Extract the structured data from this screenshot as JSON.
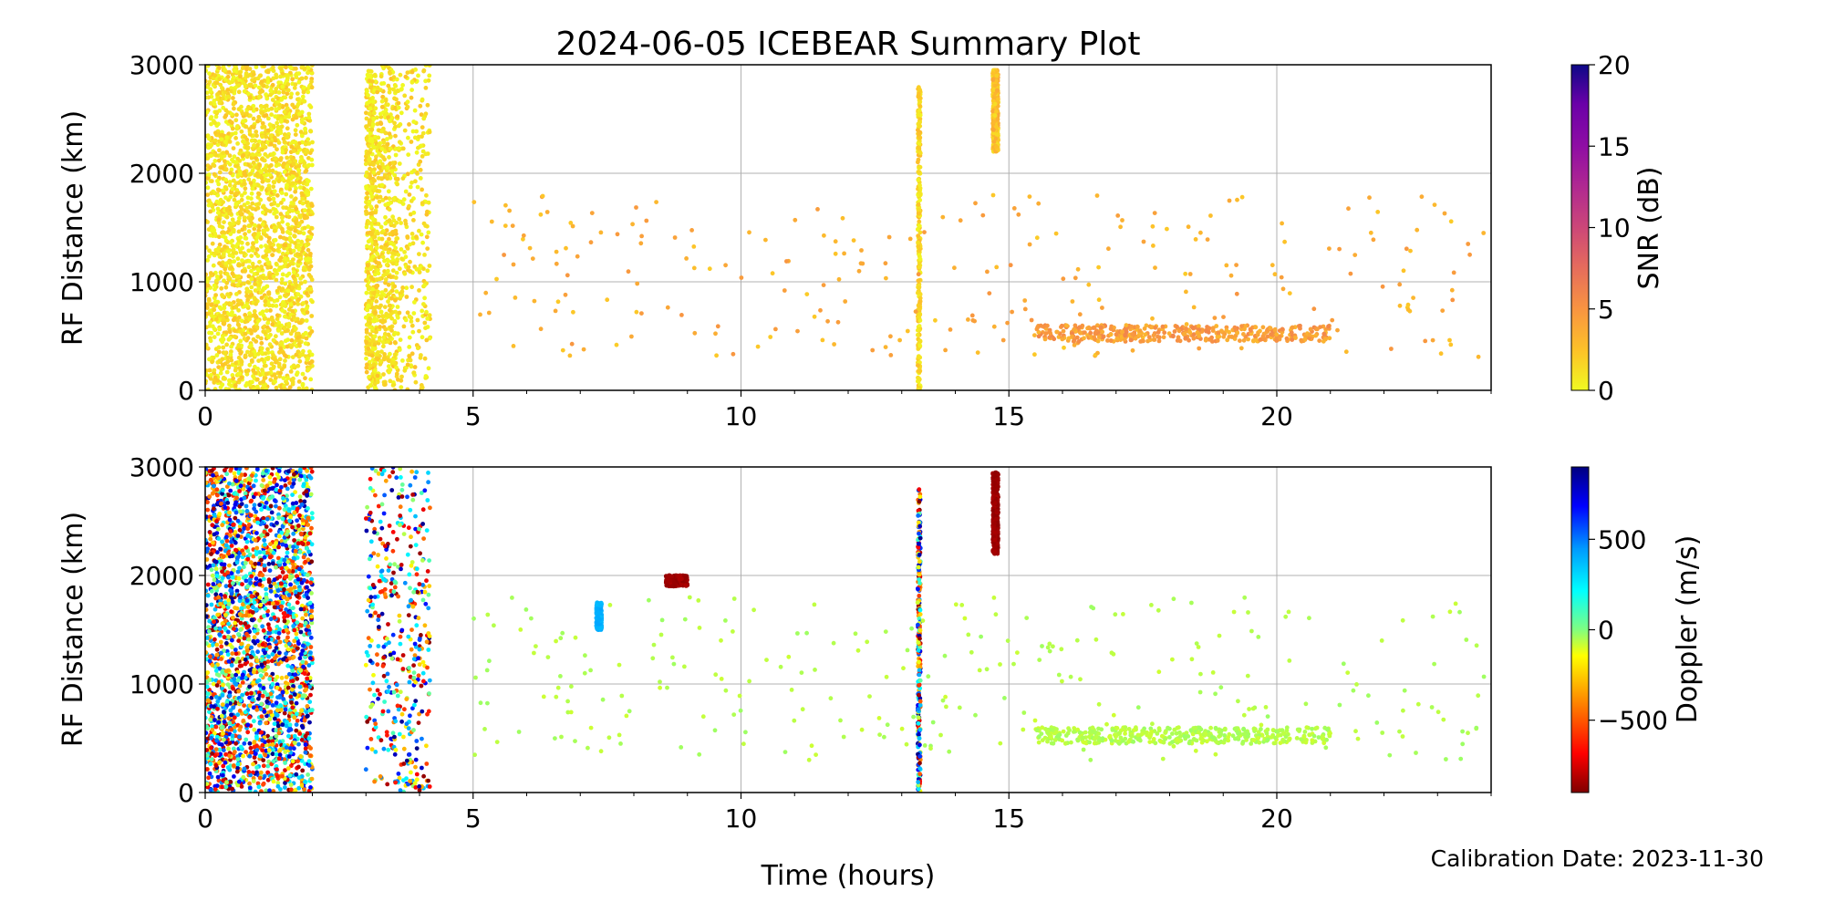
{
  "figure": {
    "title": "2024-06-05 ICEBEAR Summary Plot",
    "xlabel": "Time (hours)",
    "calibration": "Calibration Date: 2023-11-30"
  },
  "chart_data": [
    {
      "type": "scatter",
      "panel": "top",
      "ylabel": "RF Distance (km)",
      "xlim": [
        0,
        24
      ],
      "ylim": [
        0,
        3000
      ],
      "x_ticks": [
        0,
        5,
        10,
        15,
        20
      ],
      "y_ticks": [
        0,
        1000,
        2000,
        3000
      ],
      "grid": true,
      "colorbar": {
        "label": "SNR (dB)",
        "colormap": "plasma_r",
        "range": [
          0,
          20
        ],
        "ticks": [
          0,
          5,
          10,
          15,
          20
        ]
      },
      "regions": [
        {
          "x": [
            0,
            2.0
          ],
          "y": [
            0,
            3000
          ],
          "density": "very-high",
          "color_value": 0.5
        },
        {
          "x": [
            3.0,
            3.2
          ],
          "y": [
            0,
            3000
          ],
          "density": "high",
          "color_value": 0.5
        },
        {
          "x": [
            3.2,
            3.6
          ],
          "y": [
            0,
            3000
          ],
          "density": "high",
          "color_value": 0.5
        },
        {
          "x": [
            3.6,
            4.2
          ],
          "y": [
            0,
            3000
          ],
          "density": "medium",
          "color_value": 0.5
        },
        {
          "x": [
            14.7,
            14.8
          ],
          "y": [
            2200,
            2950
          ],
          "density": "high",
          "color_value": 2
        },
        {
          "x": [
            13.3,
            13.35
          ],
          "y": [
            0,
            2800
          ],
          "density": "medium",
          "color_value": 1
        },
        {
          "x": [
            5,
            24
          ],
          "y": [
            300,
            1800
          ],
          "density": "medium",
          "color_value": 3
        },
        {
          "x": [
            15.5,
            21
          ],
          "y": [
            450,
            600
          ],
          "density": "high",
          "color_value": 4
        }
      ]
    },
    {
      "type": "scatter",
      "panel": "bottom",
      "ylabel": "RF Distance (km)",
      "xlim": [
        0,
        24
      ],
      "ylim": [
        0,
        3000
      ],
      "x_ticks": [
        0,
        5,
        10,
        15,
        20
      ],
      "y_ticks": [
        0,
        1000,
        2000,
        3000
      ],
      "grid": true,
      "colorbar": {
        "label": "Doppler (m/s)",
        "colormap": "jet_r",
        "range": [
          -900,
          900
        ],
        "ticks": [
          -500,
          0,
          500
        ]
      },
      "regions": [
        {
          "x": [
            0,
            2.0
          ],
          "y": [
            0,
            3000
          ],
          "density": "very-high",
          "color_value": "random"
        },
        {
          "x": [
            3.0,
            4.2
          ],
          "y": [
            0,
            3000
          ],
          "density": "high",
          "color_value": "random"
        },
        {
          "x": [
            14.7,
            14.8
          ],
          "y": [
            2200,
            2950
          ],
          "density": "high",
          "color_value": -850
        },
        {
          "x": [
            13.3,
            13.35
          ],
          "y": [
            0,
            2800
          ],
          "density": "medium",
          "color_value": "random"
        },
        {
          "x": [
            7.3,
            7.4
          ],
          "y": [
            1500,
            1750
          ],
          "density": "medium",
          "color_value": 400
        },
        {
          "x": [
            8.6,
            9.0
          ],
          "y": [
            1900,
            2000
          ],
          "density": "medium",
          "color_value": -850
        },
        {
          "x": [
            5,
            24
          ],
          "y": [
            300,
            1800
          ],
          "density": "medium",
          "color_value": -60
        },
        {
          "x": [
            15.5,
            21
          ],
          "y": [
            450,
            600
          ],
          "density": "high",
          "color_value": -60
        }
      ]
    }
  ]
}
